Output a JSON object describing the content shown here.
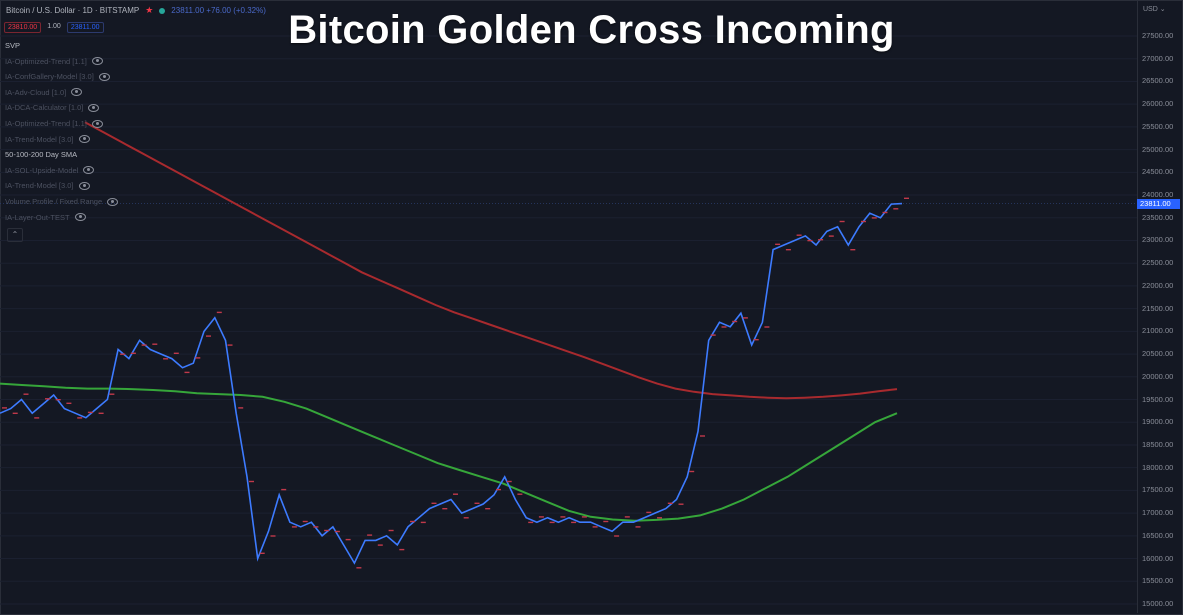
{
  "header": {
    "symbol": "Bitcoin / U.S. Dollar · 1D · BITSTAMP",
    "ohlc_text": "23811.00 +76.00 (+0.32%)"
  },
  "price_boxes": {
    "sell": "23810.00",
    "qty": "1.00",
    "buy": "23811.00"
  },
  "indicators": [
    {
      "label": "SVP",
      "eye": false,
      "bright": true
    },
    {
      "label": "IA-Optimized-Trend [1.1]",
      "eye": true,
      "bright": false
    },
    {
      "label": "IA-ConfGallery-Model [3.0]",
      "eye": true,
      "bright": false
    },
    {
      "label": "IA-Adv-Cloud [1.0]",
      "eye": true,
      "bright": false
    },
    {
      "label": "IA-DCA-Calculator [1.0]",
      "eye": true,
      "bright": false
    },
    {
      "label": "IA-Optimized-Trend [1.1]",
      "eye": true,
      "bright": false
    },
    {
      "label": "IA-Trend-Model [3.0]",
      "eye": true,
      "bright": false
    },
    {
      "label": "50-100-200 Day SMA",
      "eye": false,
      "bright": true
    },
    {
      "label": "IA-SOL-Upside-Model",
      "eye": true,
      "bright": false
    },
    {
      "label": "IA-Trend-Model [3.0]",
      "eye": true,
      "bright": false
    },
    {
      "label": "Volume Profile / Fixed Range",
      "eye": true,
      "bright": false
    },
    {
      "label": "IA-Layer-Out-TEST",
      "eye": true,
      "bright": false
    }
  ],
  "overlay_title": "Bitcoin Golden Cross Incoming",
  "price_axis": {
    "currency": "USD",
    "ticks": [
      "27500.00",
      "27000.00",
      "26500.00",
      "26000.00",
      "25500.00",
      "25000.00",
      "24500.00",
      "24000.00",
      "23500.00",
      "23000.00",
      "22500.00",
      "22000.00",
      "21500.00",
      "21000.00",
      "20500.00",
      "20000.00",
      "19500.00",
      "19000.00",
      "18500.00",
      "18000.00",
      "17500.00",
      "17000.00",
      "16500.00",
      "16000.00",
      "15500.00",
      "15000.00"
    ],
    "current_price": "23811.00"
  },
  "colors": {
    "price_line": "#3d7bff",
    "sma_red": "#a82a2e",
    "sma_green": "#36a63a",
    "background": "#141823"
  },
  "series": {
    "price": [
      19200,
      19300,
      19500,
      19200,
      19400,
      19600,
      19300,
      19200,
      19100,
      19300,
      19500,
      20600,
      20400,
      20800,
      20600,
      20500,
      20400,
      20200,
      20300,
      21000,
      21300,
      20800,
      19200,
      17800,
      16000,
      16600,
      17400,
      16800,
      16700,
      16800,
      16500,
      16700,
      16300,
      15900,
      16400,
      16400,
      16500,
      16300,
      16700,
      16900,
      17100,
      17200,
      17300,
      17000,
      17100,
      17200,
      17400,
      17800,
      17300,
      16900,
      16800,
      16900,
      16800,
      16900,
      16800,
      16800,
      16700,
      16600,
      16800,
      16800,
      16900,
      17000,
      17100,
      17300,
      17800,
      18800,
      20800,
      21200,
      21100,
      21400,
      20700,
      21200,
      22800,
      22900,
      23000,
      23100,
      22900,
      23200,
      23300,
      22900,
      23300,
      23600,
      23500,
      23800,
      23811
    ],
    "sma_red": [
      25600,
      25380,
      25160,
      24940,
      24720,
      24500,
      24280,
      24060,
      23840,
      23620,
      23400,
      23180,
      22960,
      22740,
      22520,
      22300,
      22120,
      21940,
      21760,
      21580,
      21420,
      21280,
      21140,
      21000,
      20860,
      20720,
      20580,
      20440,
      20290,
      20140,
      19990,
      19850,
      19740,
      19670,
      19620,
      19590,
      19560,
      19540,
      19530,
      19540,
      19560,
      19590,
      19630,
      19680,
      19730
    ],
    "sma_green": [
      19850,
      19820,
      19790,
      19760,
      19740,
      19740,
      19730,
      19710,
      19680,
      19640,
      19620,
      19600,
      19560,
      19450,
      19300,
      19100,
      18900,
      18700,
      18500,
      18300,
      18100,
      17950,
      17800,
      17650,
      17450,
      17250,
      17050,
      16920,
      16860,
      16830,
      16850,
      16880,
      16950,
      17100,
      17300,
      17550,
      17800,
      18100,
      18400,
      18700,
      19000,
      19200
    ]
  }
}
